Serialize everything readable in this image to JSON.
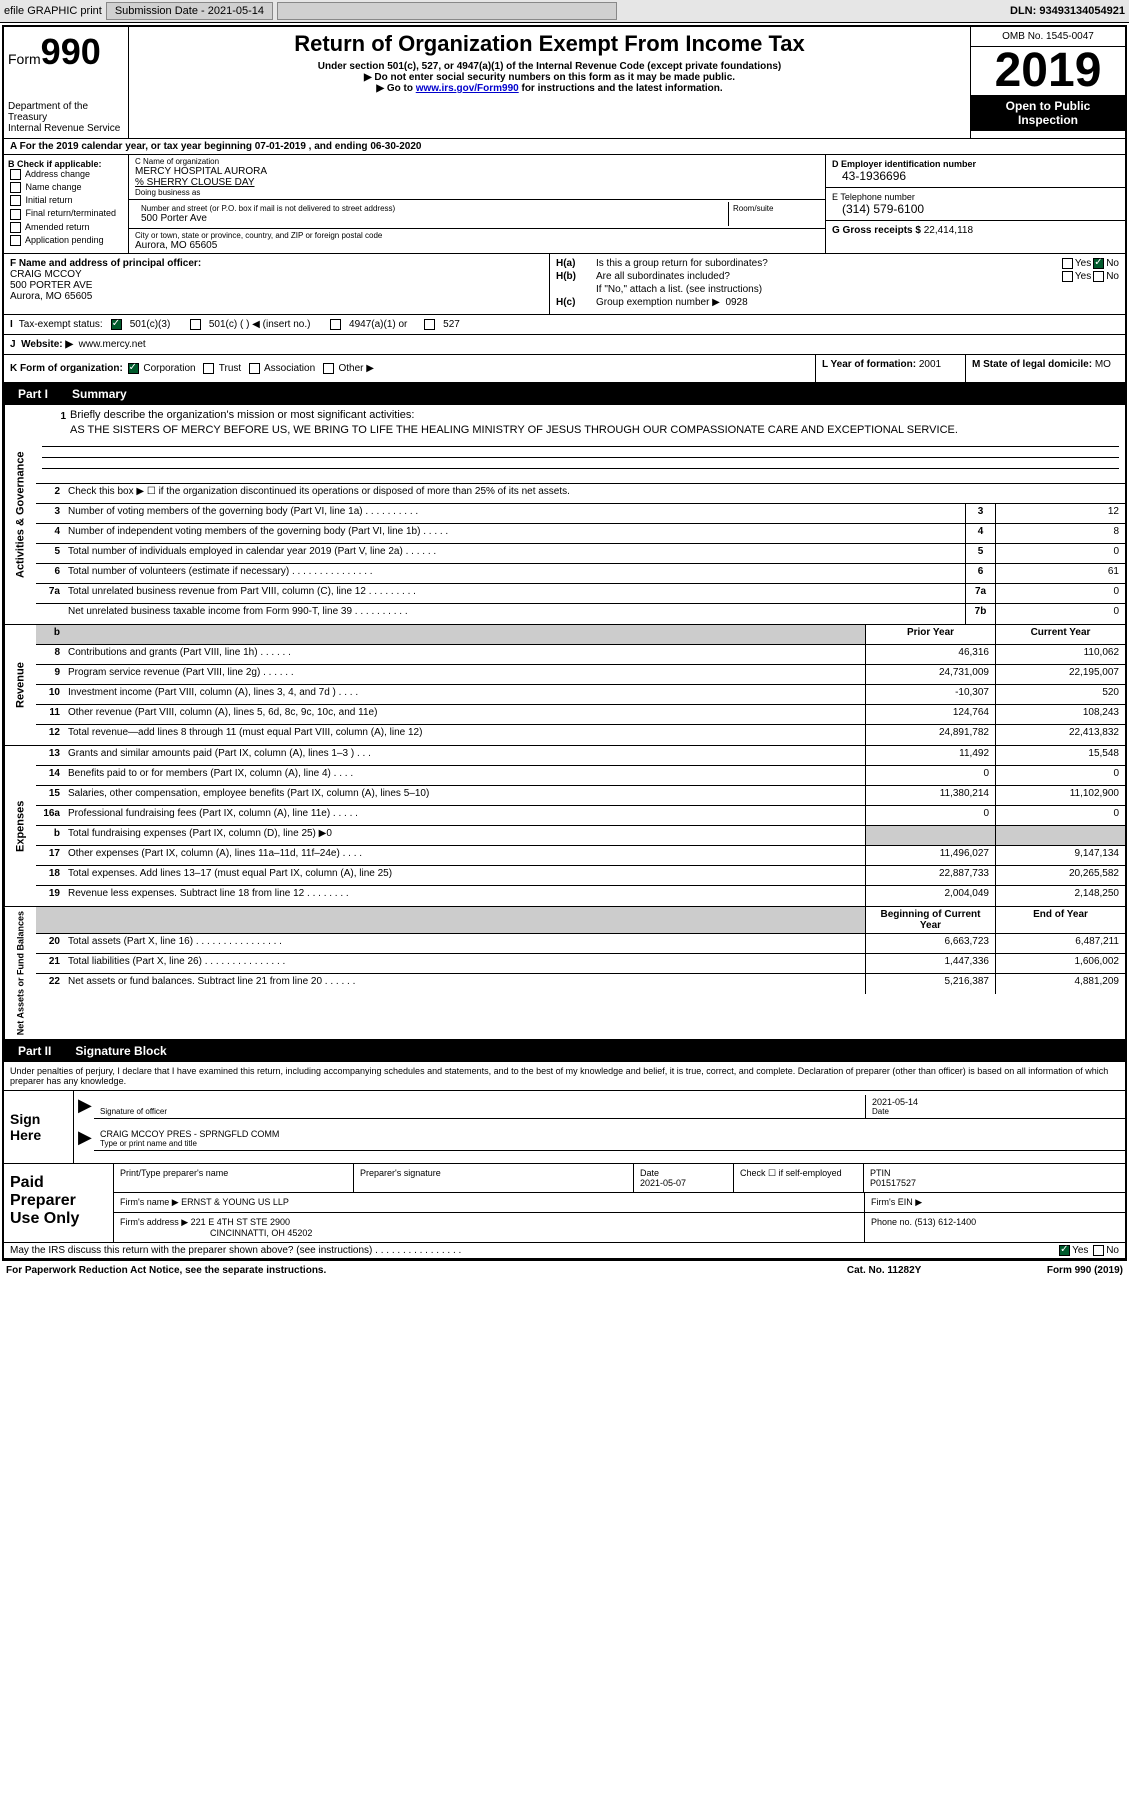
{
  "topbar": {
    "efile": "efile GRAPHIC print",
    "submission_label": "Submission Date - 2021-05-14",
    "dln": "DLN: 93493134054921"
  },
  "header": {
    "form_prefix": "Form",
    "form_number": "990",
    "dept": "Department of the Treasury",
    "irs": "Internal Revenue Service",
    "title": "Return of Organization Exempt From Income Tax",
    "sub1": "Under section 501(c), 527, or 4947(a)(1) of the Internal Revenue Code (except private foundations)",
    "sub2": "▶ Do not enter social security numbers on this form as it may be made public.",
    "sub3_pre": "▶ Go to ",
    "sub3_link": "www.irs.gov/Form990",
    "sub3_post": " for instructions and the latest information.",
    "omb": "OMB No. 1545-0047",
    "year": "2019",
    "public1": "Open to Public",
    "public2": "Inspection"
  },
  "rowA": "A For the 2019 calendar year, or tax year beginning 07-01-2019   , and ending 06-30-2020",
  "sectionB": {
    "check_label": "B Check if applicable:",
    "checks": [
      "Address change",
      "Name change",
      "Initial return",
      "Final return/terminated",
      "Amended return",
      "Application pending"
    ],
    "c_label": "C Name of organization",
    "org_name": "MERCY HOSPITAL AURORA",
    "care_of": "% SHERRY CLOUSE DAY",
    "dba_label": "Doing business as",
    "addr_label": "Number and street (or P.O. box if mail is not delivered to street address)",
    "room_label": "Room/suite",
    "street": "500 Porter Ave",
    "city_label": "City or town, state or province, country, and ZIP or foreign postal code",
    "city": "Aurora, MO  65605",
    "d_label": "D Employer identification number",
    "ein": "43-1936696",
    "e_label": "E Telephone number",
    "phone": "(314) 579-6100",
    "g_label": "G Gross receipts $",
    "gross": "22,414,118"
  },
  "sectionF": {
    "f_label": "F  Name and address of principal officer:",
    "officer_name": "CRAIG MCCOY",
    "officer_addr1": "500 PORTER AVE",
    "officer_addr2": "Aurora, MO  65605",
    "ha_label": "H(a)",
    "ha_text": "Is this a group return for subordinates?",
    "hb_label": "H(b)",
    "hb_text": "Are all subordinates included?",
    "hb_note": "If \"No,\" attach a list. (see instructions)",
    "hc_label": "H(c)",
    "hc_text": "Group exemption number ▶",
    "hc_val": "0928",
    "yes": "Yes",
    "no": "No"
  },
  "taxExempt": {
    "i_label": "I",
    "label": "Tax-exempt status:",
    "opt1": "501(c)(3)",
    "opt2": "501(c) (  ) ◀ (insert no.)",
    "opt3": "4947(a)(1) or",
    "opt4": "527"
  },
  "website": {
    "j_label": "J",
    "label": "Website: ▶",
    "url": "www.mercy.net"
  },
  "rowK": {
    "label": "K Form of organization:",
    "corp": "Corporation",
    "trust": "Trust",
    "assoc": "Association",
    "other": "Other ▶",
    "l_label": "L Year of formation:",
    "l_val": "2001",
    "m_label": "M State of legal domicile:",
    "m_val": "MO"
  },
  "part1": {
    "tab": "Part I",
    "title": "Summary"
  },
  "mission": {
    "num": "1",
    "label": "Briefly describe the organization's mission or most significant activities:",
    "text": "AS THE SISTERS OF MERCY BEFORE US, WE BRING TO LIFE THE HEALING MINISTRY OF JESUS THROUGH OUR COMPASSIONATE CARE AND EXCEPTIONAL SERVICE."
  },
  "activities": {
    "side": "Activities & Governance",
    "line2": {
      "num": "2",
      "text": "Check this box ▶ ☐  if the organization discontinued its operations or disposed of more than 25% of its net assets."
    },
    "rows": [
      {
        "num": "3",
        "text": "Number of voting members of the governing body (Part VI, line 1a)  .  .  .  .  .  .  .  .  .  .",
        "box": "3",
        "val": "12"
      },
      {
        "num": "4",
        "text": "Number of independent voting members of the governing body (Part VI, line 1b)  .  .  .  .  .",
        "box": "4",
        "val": "8"
      },
      {
        "num": "5",
        "text": "Total number of individuals employed in calendar year 2019 (Part V, line 2a)  .  .  .  .  .  .",
        "box": "5",
        "val": "0"
      },
      {
        "num": "6",
        "text": "Total number of volunteers (estimate if necessary)   .  .  .  .  .  .  .  .  .  .  .  .  .  .  .",
        "box": "6",
        "val": "61"
      },
      {
        "num": "7a",
        "text": "Total unrelated business revenue from Part VIII, column (C), line 12  .  .  .  .  .  .  .  .  .",
        "box": "7a",
        "val": "0"
      },
      {
        "num": "",
        "text": "Net unrelated business taxable income from Form 990-T, line 39   .  .  .  .  .  .  .  .  .  .",
        "box": "7b",
        "val": "0"
      }
    ]
  },
  "revenue": {
    "side": "Revenue",
    "header": {
      "prior": "Prior Year",
      "current": "Current Year"
    },
    "rows": [
      {
        "num": "8",
        "text": "Contributions and grants (Part VIII, line 1h)  .  .  .  .  .  .",
        "prior": "46,316",
        "current": "110,062"
      },
      {
        "num": "9",
        "text": "Program service revenue (Part VIII, line 2g)   .  .  .  .  .  .",
        "prior": "24,731,009",
        "current": "22,195,007"
      },
      {
        "num": "10",
        "text": "Investment income (Part VIII, column (A), lines 3, 4, and 7d )  .  .  .  .",
        "prior": "-10,307",
        "current": "520"
      },
      {
        "num": "11",
        "text": "Other revenue (Part VIII, column (A), lines 5, 6d, 8c, 9c, 10c, and 11e)",
        "prior": "124,764",
        "current": "108,243"
      },
      {
        "num": "12",
        "text": "Total revenue—add lines 8 through 11 (must equal Part VIII, column (A), line 12)",
        "prior": "24,891,782",
        "current": "22,413,832"
      }
    ]
  },
  "expenses": {
    "side": "Expenses",
    "rows": [
      {
        "num": "13",
        "text": "Grants and similar amounts paid (Part IX, column (A), lines 1–3 )  .  .  .",
        "prior": "11,492",
        "current": "15,548"
      },
      {
        "num": "14",
        "text": "Benefits paid to or for members (Part IX, column (A), line 4)  .  .  .  .",
        "prior": "0",
        "current": "0"
      },
      {
        "num": "15",
        "text": "Salaries, other compensation, employee benefits (Part IX, column (A), lines 5–10)",
        "prior": "11,380,214",
        "current": "11,102,900"
      },
      {
        "num": "16a",
        "text": "Professional fundraising fees (Part IX, column (A), line 11e)  .  .  .  .  .",
        "prior": "0",
        "current": "0"
      },
      {
        "num": "b",
        "text": "Total fundraising expenses (Part IX, column (D), line 25) ▶0",
        "prior": "",
        "current": "",
        "shaded": true
      },
      {
        "num": "17",
        "text": "Other expenses (Part IX, column (A), lines 11a–11d, 11f–24e)  .  .  .  .",
        "prior": "11,496,027",
        "current": "9,147,134"
      },
      {
        "num": "18",
        "text": "Total expenses. Add lines 13–17 (must equal Part IX, column (A), line 25)",
        "prior": "22,887,733",
        "current": "20,265,582"
      },
      {
        "num": "19",
        "text": "Revenue less expenses. Subtract line 18 from line 12  .  .  .  .  .  .  .  .",
        "prior": "2,004,049",
        "current": "2,148,250"
      }
    ]
  },
  "netassets": {
    "side": "Net Assets or Fund Balances",
    "header": {
      "prior": "Beginning of Current Year",
      "current": "End of Year"
    },
    "rows": [
      {
        "num": "20",
        "text": "Total assets (Part X, line 16)  .  .  .  .  .  .  .  .  .  .  .  .  .  .  .  .",
        "prior": "6,663,723",
        "current": "6,487,211"
      },
      {
        "num": "21",
        "text": "Total liabilities (Part X, line 26)  .  .  .  .  .  .  .  .  .  .  .  .  .  .  .",
        "prior": "1,447,336",
        "current": "1,606,002"
      },
      {
        "num": "22",
        "text": "Net assets or fund balances. Subtract line 21 from line 20  .  .  .  .  .  .",
        "prior": "5,216,387",
        "current": "4,881,209"
      }
    ]
  },
  "part2": {
    "tab": "Part II",
    "title": "Signature Block"
  },
  "sig": {
    "declare": "Under penalties of perjury, I declare that I have examined this return, including accompanying schedules and statements, and to the best of my knowledge and belief, it is true, correct, and complete. Declaration of preparer (other than officer) is based on all information of which preparer has any knowledge.",
    "sign_here": "Sign Here",
    "sig_officer_label": "Signature of officer",
    "date_val": "2021-05-14",
    "date_label": "Date",
    "name_val": "CRAIG MCCOY PRES - SPRNGFLD COMM",
    "name_label": "Type or print name and title"
  },
  "paid": {
    "title": "Paid Preparer Use Only",
    "h_name": "Print/Type preparer's name",
    "h_sig": "Preparer's signature",
    "h_date": "Date",
    "date_val": "2021-05-07",
    "h_check": "Check ☐ if self-employed",
    "h_ptin": "PTIN",
    "ptin_val": "P01517527",
    "firm_name_label": "Firm's name     ▶",
    "firm_name": "ERNST & YOUNG US LLP",
    "firm_ein_label": "Firm's EIN ▶",
    "firm_addr_label": "Firm's address ▶",
    "firm_addr1": "221 E 4TH ST STE 2900",
    "firm_addr2": "CINCINNATTI, OH  45202",
    "firm_phone_label": "Phone no.",
    "firm_phone": "(513) 612-1400"
  },
  "footer": {
    "irs_q": "May the IRS discuss this return with the preparer shown above? (see instructions)   .  .  .  .  .  .  .  .  .  .  .  .  .  .  .  .",
    "yes": "Yes",
    "no": "No",
    "paperwork": "For Paperwork Reduction Act Notice, see the separate instructions.",
    "cat": "Cat. No. 11282Y",
    "form": "Form 990 (2019)"
  }
}
